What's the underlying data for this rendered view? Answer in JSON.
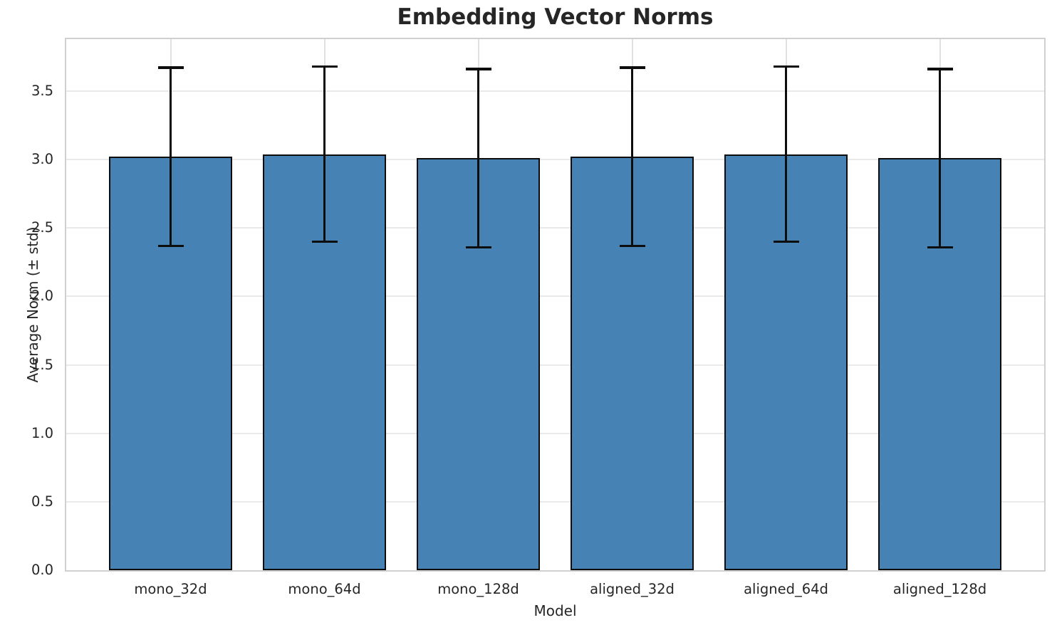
{
  "chart_data": {
    "type": "bar",
    "title": "Embedding Vector Norms",
    "xlabel": "Model",
    "ylabel": "Average Norm (± std)",
    "categories": [
      "mono_32d",
      "mono_64d",
      "mono_128d",
      "aligned_32d",
      "aligned_64d",
      "aligned_128d"
    ],
    "series": [
      {
        "name": "Average Norm",
        "values": [
          3.02,
          3.04,
          3.01,
          3.02,
          3.04,
          3.01
        ],
        "errors": [
          0.66,
          0.65,
          0.66,
          0.66,
          0.65,
          0.66
        ]
      }
    ],
    "yticks": [
      0.0,
      0.5,
      1.0,
      1.5,
      2.0,
      2.5,
      3.0,
      3.5
    ],
    "ylim": [
      0,
      3.88
    ],
    "grid": true,
    "legend": "none",
    "colors": {
      "bar_fill": "#4682b4",
      "bar_edge": "#0d0d0d",
      "error_bar": "#0d0d0d",
      "grid_h": "#e9e9e9",
      "grid_v": "#e0e0e0",
      "spine": "#d0d0d0",
      "text": "#262626",
      "background": "#ffffff"
    }
  }
}
